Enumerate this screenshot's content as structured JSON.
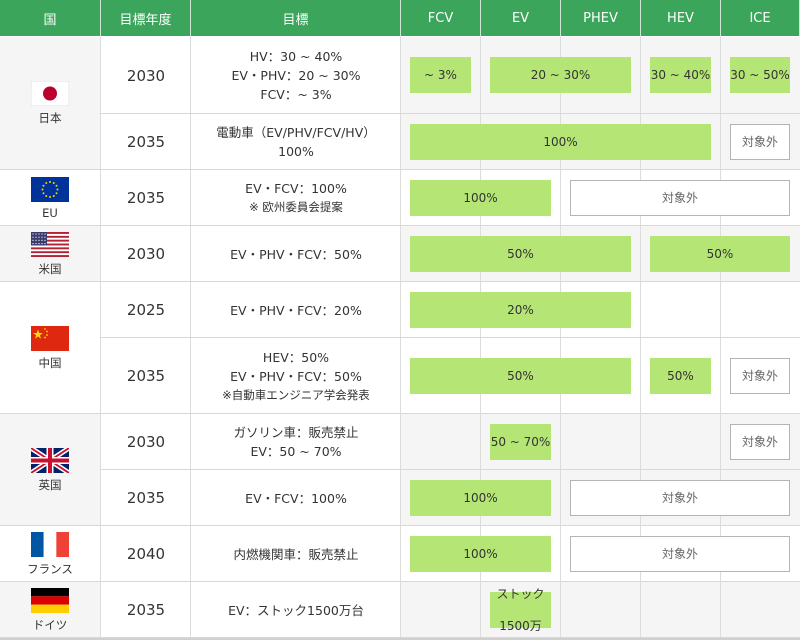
{
  "headers": [
    "国",
    "目標年度",
    "目標",
    "FCV",
    "EV",
    "PHEV",
    "HEV",
    "ICE"
  ],
  "countries": [
    {
      "name": "日本",
      "flag": "japan-flag-icon"
    },
    {
      "name": "EU",
      "flag": "eu-flag-icon"
    },
    {
      "name": "米国",
      "flag": "usa-flag-icon"
    },
    {
      "name": "中国",
      "flag": "china-flag-icon"
    },
    {
      "name": "英国",
      "flag": "uk-flag-icon"
    },
    {
      "name": "フランス",
      "flag": "france-flag-icon"
    },
    {
      "name": "ドイツ",
      "flag": "germany-flag-icon"
    }
  ],
  "rows": [
    {
      "country": 0,
      "year": "2030",
      "target": [
        "HV：30 ~ 40%",
        "EV・PHV：20 ~ 30%",
        "FCV：~ 3%"
      ],
      "note": "",
      "bars": [
        {
          "start": 0,
          "span": 1,
          "label": [
            "~ 3%"
          ],
          "type": "value"
        },
        {
          "start": 1,
          "span": 2,
          "label": [
            "20 ~ 30%"
          ],
          "type": "value"
        },
        {
          "start": 3,
          "span": 1,
          "label": [
            "30 ~ 40%"
          ],
          "type": "value"
        },
        {
          "start": 4,
          "span": 1,
          "label": [
            "30 ~ 50%"
          ],
          "type": "value"
        }
      ]
    },
    {
      "country": 0,
      "year": "2035",
      "target": [
        "電動車（EV/PHV/FCV/HV）",
        "100%"
      ],
      "note": "",
      "bars": [
        {
          "start": 0,
          "span": 4,
          "label": [
            "100%"
          ],
          "type": "value"
        },
        {
          "start": 4,
          "span": 1,
          "label": [
            "対象外"
          ],
          "type": "excluded"
        }
      ]
    },
    {
      "country": 1,
      "year": "2035",
      "target": [
        "EV・FCV：100%"
      ],
      "note": "※ 欧州委員会提案",
      "bars": [
        {
          "start": 0,
          "span": 2,
          "label": [
            "100%"
          ],
          "type": "value"
        },
        {
          "start": 2,
          "span": 3,
          "label": [
            "対象外"
          ],
          "type": "excluded"
        }
      ]
    },
    {
      "country": 2,
      "year": "2030",
      "target": [
        "EV・PHV・FCV：50%"
      ],
      "note": "",
      "bars": [
        {
          "start": 0,
          "span": 3,
          "label": [
            "50%"
          ],
          "type": "value"
        },
        {
          "start": 3,
          "span": 2,
          "label": [
            "50%"
          ],
          "type": "value"
        }
      ]
    },
    {
      "country": 3,
      "year": "2025",
      "target": [
        "EV・PHV・FCV：20%"
      ],
      "note": "",
      "bars": [
        {
          "start": 0,
          "span": 3,
          "label": [
            "20%"
          ],
          "type": "value"
        }
      ]
    },
    {
      "country": 3,
      "year": "2035",
      "target": [
        "HEV：50%",
        "EV・PHV・FCV：50%"
      ],
      "note": "※自動車エンジニア学会発表",
      "bars": [
        {
          "start": 0,
          "span": 3,
          "label": [
            "50%"
          ],
          "type": "value"
        },
        {
          "start": 3,
          "span": 1,
          "label": [
            "50%"
          ],
          "type": "value"
        },
        {
          "start": 4,
          "span": 1,
          "label": [
            "対象外"
          ],
          "type": "excluded"
        }
      ]
    },
    {
      "country": 4,
      "year": "2030",
      "target": [
        "ガソリン車：販売禁止",
        "EV：50 ~ 70%"
      ],
      "note": "",
      "bars": [
        {
          "start": 1,
          "span": 1,
          "label": [
            "50 ~ 70%"
          ],
          "type": "value"
        },
        {
          "start": 4,
          "span": 1,
          "label": [
            "対象外"
          ],
          "type": "excluded"
        }
      ]
    },
    {
      "country": 4,
      "year": "2035",
      "target": [
        "EV・FCV：100%"
      ],
      "note": "",
      "bars": [
        {
          "start": 0,
          "span": 2,
          "label": [
            "100%"
          ],
          "type": "value"
        },
        {
          "start": 2,
          "span": 3,
          "label": [
            "対象外"
          ],
          "type": "excluded"
        }
      ]
    },
    {
      "country": 5,
      "year": "2040",
      "target": [
        "内燃機関車：販売禁止"
      ],
      "note": "",
      "bars": [
        {
          "start": 0,
          "span": 2,
          "label": [
            "100%"
          ],
          "type": "value"
        },
        {
          "start": 2,
          "span": 3,
          "label": [
            "対象外"
          ],
          "type": "excluded"
        }
      ]
    },
    {
      "country": 6,
      "year": "2035",
      "target": [
        "EV：ストック1500万台"
      ],
      "note": "",
      "bars": [
        {
          "start": 1,
          "span": 1,
          "label": [
            "ストック",
            "1500万"
          ],
          "type": "value"
        }
      ]
    }
  ],
  "chart_data": {
    "type": "table",
    "columns": [
      "国",
      "目標年度",
      "目標",
      "FCV",
      "EV",
      "PHEV",
      "HEV",
      "ICE"
    ],
    "rows": [
      [
        "日本",
        "2030",
        "HV：30 ~ 40% / EV・PHV：20 ~ 30% / FCV：~ 3%",
        "~ 3%",
        "20 ~ 30%",
        "20 ~ 30%",
        "30 ~ 40%",
        "30 ~ 50%"
      ],
      [
        "日本",
        "2035",
        "電動車（EV/PHV/FCV/HV） 100%",
        "100%",
        "100%",
        "100%",
        "100%",
        "対象外"
      ],
      [
        "EU",
        "2035",
        "EV・FCV：100% ※ 欧州委員会提案",
        "100%",
        "100%",
        "対象外",
        "対象外",
        "対象外"
      ],
      [
        "米国",
        "2030",
        "EV・PHV・FCV：50%",
        "50%",
        "50%",
        "50%",
        "50%",
        "50%"
      ],
      [
        "中国",
        "2025",
        "EV・PHV・FCV：20%",
        "20%",
        "20%",
        "20%",
        "",
        ""
      ],
      [
        "中国",
        "2035",
        "HEV：50% / EV・PHV・FCV：50% ※自動車エンジニア学会発表",
        "50%",
        "50%",
        "50%",
        "50%",
        "対象外"
      ],
      [
        "英国",
        "2030",
        "ガソリン車：販売禁止 / EV：50 ~ 70%",
        "",
        "50 ~ 70%",
        "",
        "",
        "対象外"
      ],
      [
        "英国",
        "2035",
        "EV・FCV：100%",
        "100%",
        "100%",
        "対象外",
        "対象外",
        "対象外"
      ],
      [
        "フランス",
        "2040",
        "内燃機関車：販売禁止",
        "100%",
        "100%",
        "対象外",
        "対象外",
        "対象外"
      ],
      [
        "ドイツ",
        "2035",
        "EV：ストック1500万台",
        "",
        "ストック 1500万",
        "",
        "",
        ""
      ]
    ]
  }
}
